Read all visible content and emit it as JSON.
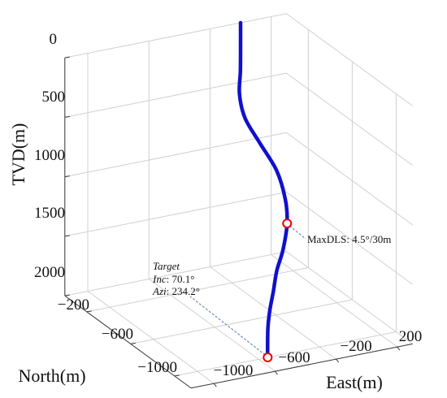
{
  "chart_data": {
    "type": "line",
    "projection": "3d",
    "grid": true,
    "series_color": "#1010cc",
    "marker_color": "#ee0000",
    "leader_color": "#5577aa",
    "axes": {
      "tvd": {
        "label": "TVD(m)",
        "ticks": [
          "0",
          "500",
          "1000",
          "1500",
          "2000"
        ],
        "lim": [
          0,
          2000
        ],
        "reversed": true
      },
      "north": {
        "label": "North(m)",
        "ticks": [
          "−200",
          "−600",
          "−1000"
        ],
        "tick_values": [
          -200,
          -600,
          -1000
        ],
        "lim": [
          -1150,
          0
        ]
      },
      "east": {
        "label": "East(m)",
        "ticks": [
          "−1000",
          "−600",
          "−200",
          "200"
        ],
        "tick_values": [
          -1000,
          -600,
          -200,
          200
        ],
        "lim": [
          -1150,
          300
        ]
      }
    },
    "trajectory": {
      "east": [
        0,
        0,
        -1,
        -5,
        22,
        90,
        150,
        160,
        125,
        40,
        -50,
        -130,
        -210,
        -280,
        -340,
        -390
      ],
      "north": [
        0,
        0,
        0,
        3,
        -10,
        -50,
        -120,
        -185,
        -250,
        -330,
        -400,
        -480,
        -560,
        -640,
        -720,
        -790
      ],
      "tvd": [
        0,
        150,
        400,
        600,
        800,
        1000,
        1200,
        1400,
        1550,
        1700,
        1800,
        1900,
        1980,
        2050,
        2120,
        2180
      ]
    },
    "annotations": {
      "maxdls": {
        "text": "MaxDLS: 4.5°/30m",
        "index": 8
      },
      "target": {
        "index": 15,
        "title": "Target",
        "inc_label": "Inc",
        "inc_value": ": 70.1°",
        "azi_label": "Azi",
        "azi_value": ": 234.2°"
      }
    }
  }
}
